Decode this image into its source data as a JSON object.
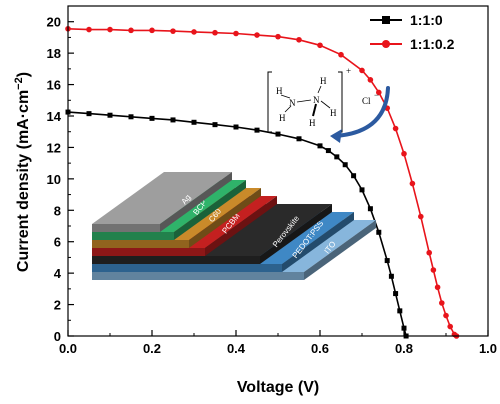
{
  "chart_data": {
    "type": "line",
    "xlabel": "Voltage (V)",
    "ylabel": "Current density (mA·cm",
    "ylabel_sup": "−2",
    "ylabel_close": ")",
    "xlim": [
      0.0,
      1.0
    ],
    "ylim": [
      0,
      21
    ],
    "xticks": [
      "0.0",
      "0.2",
      "0.4",
      "0.6",
      "0.8",
      "1.0"
    ],
    "yticks": [
      "0",
      "2",
      "4",
      "6",
      "8",
      "10",
      "12",
      "14",
      "16",
      "18",
      "20"
    ],
    "grid": false,
    "legend_position": "top-right",
    "series": [
      {
        "name": "1:1:0",
        "color": "#000000",
        "marker": "square",
        "x": [
          0.0,
          0.05,
          0.1,
          0.15,
          0.2,
          0.25,
          0.3,
          0.35,
          0.4,
          0.45,
          0.5,
          0.55,
          0.6,
          0.62,
          0.64,
          0.66,
          0.68,
          0.7,
          0.72,
          0.74,
          0.76,
          0.77,
          0.78,
          0.79,
          0.8,
          0.805
        ],
        "y": [
          14.25,
          14.15,
          14.05,
          13.95,
          13.85,
          13.75,
          13.6,
          13.45,
          13.3,
          13.1,
          12.85,
          12.55,
          12.1,
          11.8,
          11.4,
          10.9,
          10.2,
          9.3,
          8.1,
          6.6,
          4.8,
          3.8,
          2.7,
          1.6,
          0.5,
          0.0
        ]
      },
      {
        "name": "1:1:0.2",
        "color": "#e8141b",
        "marker": "circle",
        "x": [
          0.0,
          0.05,
          0.1,
          0.15,
          0.2,
          0.25,
          0.3,
          0.35,
          0.4,
          0.45,
          0.5,
          0.55,
          0.6,
          0.65,
          0.7,
          0.72,
          0.74,
          0.76,
          0.78,
          0.8,
          0.82,
          0.84,
          0.86,
          0.87,
          0.88,
          0.89,
          0.9,
          0.91,
          0.92,
          0.925
        ],
        "y": [
          19.55,
          19.5,
          19.5,
          19.45,
          19.45,
          19.4,
          19.35,
          19.3,
          19.25,
          19.15,
          19.05,
          18.85,
          18.5,
          17.9,
          16.9,
          16.3,
          15.5,
          14.5,
          13.2,
          11.6,
          9.7,
          7.6,
          5.3,
          4.2,
          3.1,
          2.1,
          1.3,
          0.6,
          0.1,
          0.0
        ]
      }
    ]
  },
  "inset": {
    "layers": [
      "Ag",
      "BCP",
      "C60",
      "PCBM",
      "Perovskite",
      "PEDOT:PSS",
      "ITO"
    ],
    "layer_colors": [
      "#9e9e9e",
      "#2fb36a",
      "#c98a2a",
      "#c42020",
      "#2a2a2a",
      "#3f88c5",
      "#87b6dc"
    ],
    "molecule": {
      "h": "H",
      "n": "N",
      "charge": "+",
      "anion": "Cl",
      "anion_charge": "−"
    }
  }
}
